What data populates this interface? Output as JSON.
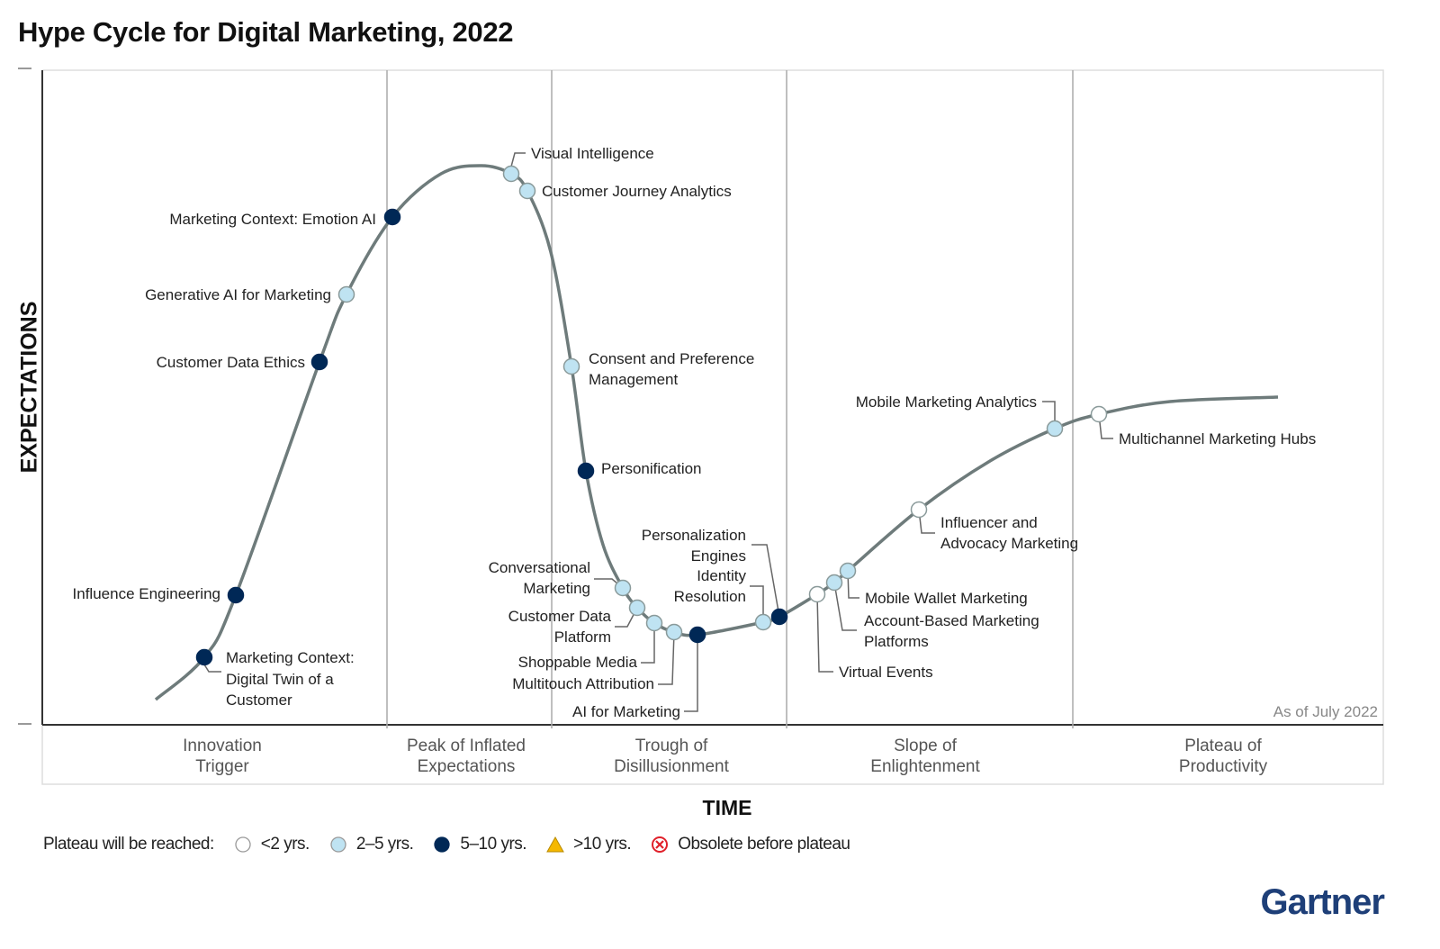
{
  "title": "Hype Cycle for Digital Marketing, 2022",
  "brand": "Gartner",
  "chart_data": {
    "type": "scatter",
    "title": "Hype Cycle for Digital Marketing, 2022",
    "xlabel": "TIME",
    "ylabel": "EXPECTATIONS",
    "annotation": "As of July 2022",
    "phases": [
      [
        "Innovation",
        "Trigger"
      ],
      [
        "Peak of Inflated",
        "Expectations"
      ],
      [
        "Trough of",
        "Disillusionment"
      ],
      [
        "Slope of",
        "Enlightenment"
      ],
      [
        "Plateau of",
        "Productivity"
      ]
    ],
    "legend": {
      "title": "Plateau will be reached:",
      "entries": [
        {
          "key": "lt2",
          "label": "<2 yrs.",
          "color": "#ffffff"
        },
        {
          "key": "2to5",
          "label": "2–5 yrs.",
          "color": "#bfe3f2"
        },
        {
          "key": "5to10",
          "label": "5–10 yrs.",
          "color": "#002856"
        },
        {
          "key": "gt10",
          "label": ">10 yrs.",
          "color": "#f5b800"
        },
        {
          "key": "obsolete",
          "label": "Obsolete before plateau",
          "color": "#e0202a"
        }
      ]
    },
    "items": [
      {
        "name": [
          "Marketing Context:",
          "Digital Twin of a",
          "Customer"
        ],
        "phase": "Innovation Trigger",
        "plateau": "5to10"
      },
      {
        "name": [
          "Influence Engineering"
        ],
        "phase": "Innovation Trigger",
        "plateau": "5to10"
      },
      {
        "name": [
          "Customer Data Ethics"
        ],
        "phase": "Innovation Trigger",
        "plateau": "5to10"
      },
      {
        "name": [
          "Generative AI for Marketing"
        ],
        "phase": "Innovation Trigger",
        "plateau": "2to5"
      },
      {
        "name": [
          "Marketing Context: Emotion AI"
        ],
        "phase": "Peak of Inflated Expectations",
        "plateau": "5to10"
      },
      {
        "name": [
          "Visual Intelligence"
        ],
        "phase": "Peak of Inflated Expectations",
        "plateau": "2to5"
      },
      {
        "name": [
          "Customer Journey Analytics"
        ],
        "phase": "Peak of Inflated Expectations",
        "plateau": "2to5"
      },
      {
        "name": [
          "Consent and Preference",
          "Management"
        ],
        "phase": "Trough of Disillusionment",
        "plateau": "2to5"
      },
      {
        "name": [
          "Personification"
        ],
        "phase": "Trough of Disillusionment",
        "plateau": "5to10"
      },
      {
        "name": [
          "Conversational",
          "Marketing"
        ],
        "phase": "Trough of Disillusionment",
        "plateau": "2to5"
      },
      {
        "name": [
          "Customer Data",
          "Platform"
        ],
        "phase": "Trough of Disillusionment",
        "plateau": "2to5"
      },
      {
        "name": [
          "Shoppable Media"
        ],
        "phase": "Trough of Disillusionment",
        "plateau": "2to5"
      },
      {
        "name": [
          "Multitouch Attribution"
        ],
        "phase": "Trough of Disillusionment",
        "plateau": "2to5"
      },
      {
        "name": [
          "AI for Marketing"
        ],
        "phase": "Trough of Disillusionment",
        "plateau": "5to10"
      },
      {
        "name": [
          "Identity",
          "Resolution"
        ],
        "phase": "Trough of Disillusionment",
        "plateau": "2to5"
      },
      {
        "name": [
          "Personalization",
          "Engines"
        ],
        "phase": "Trough of Disillusionment",
        "plateau": "5to10"
      },
      {
        "name": [
          "Virtual Events"
        ],
        "phase": "Slope of Enlightenment",
        "plateau": "lt2"
      },
      {
        "name": [
          "Account-Based Marketing",
          "Platforms"
        ],
        "phase": "Slope of Enlightenment",
        "plateau": "2to5"
      },
      {
        "name": [
          "Mobile Wallet Marketing"
        ],
        "phase": "Slope of Enlightenment",
        "plateau": "2to5"
      },
      {
        "name": [
          "Influencer and",
          "Advocacy Marketing"
        ],
        "phase": "Slope of Enlightenment",
        "plateau": "lt2"
      },
      {
        "name": [
          "Mobile Marketing Analytics"
        ],
        "phase": "Slope of Enlightenment",
        "plateau": "2to5"
      },
      {
        "name": [
          "Multichannel Marketing Hubs"
        ],
        "phase": "Slope of Enlightenment",
        "plateau": "lt2"
      }
    ]
  }
}
